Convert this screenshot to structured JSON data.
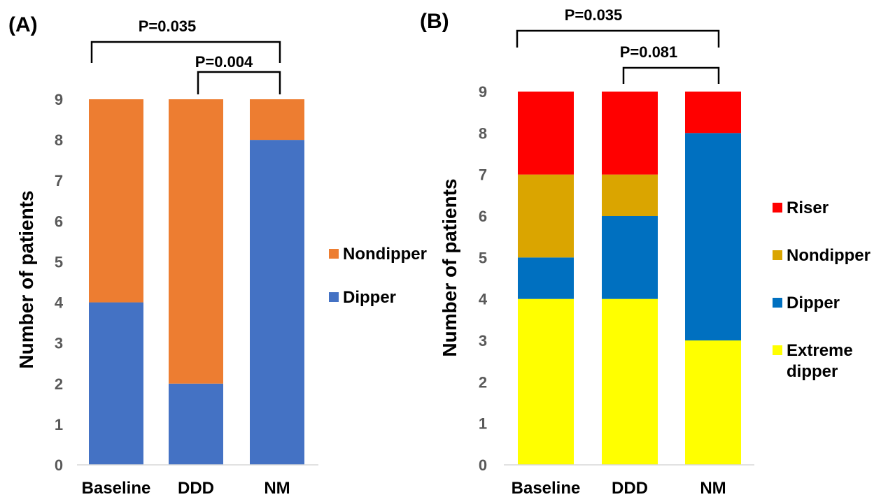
{
  "chart_data": [
    {
      "type": "bar",
      "stacked": true,
      "panel_label": "(A)",
      "title": "",
      "xlabel": "",
      "ylabel": "Number of patients",
      "ylim": [
        0,
        9
      ],
      "yticks": [
        0,
        1,
        2,
        3,
        4,
        5,
        6,
        7,
        8,
        9
      ],
      "grid": false,
      "legend_position": "right",
      "categories": [
        "Baseline",
        "DDD",
        "NM"
      ],
      "series": [
        {
          "name": "Dipper",
          "color": "#4472C4",
          "values": [
            4,
            2,
            8
          ]
        },
        {
          "name": "Nondipper",
          "color": "#ED7D31",
          "values": [
            5,
            7,
            1
          ]
        }
      ],
      "legend_order": [
        "Nondipper",
        "Dipper"
      ],
      "annotations": [
        {
          "text": "P=0.035",
          "from": "Baseline",
          "to": "NM"
        },
        {
          "text": "P=0.004",
          "from": "DDD",
          "to": "NM"
        }
      ]
    },
    {
      "type": "bar",
      "stacked": true,
      "panel_label": "(B)",
      "title": "",
      "xlabel": "",
      "ylabel": "Number of patients",
      "ylim": [
        0,
        9
      ],
      "yticks": [
        0,
        1,
        2,
        3,
        4,
        5,
        6,
        7,
        8,
        9
      ],
      "grid": false,
      "legend_position": "right",
      "categories": [
        "Baseline",
        "DDD",
        "NM"
      ],
      "series": [
        {
          "name": "Extreme dipper",
          "color": "#FFFF00",
          "values": [
            4,
            4,
            3
          ]
        },
        {
          "name": "Dipper",
          "color": "#0070C0",
          "values": [
            1,
            2,
            5
          ]
        },
        {
          "name": "Nondipper",
          "color": "#DAA500",
          "values": [
            2,
            1,
            0
          ]
        },
        {
          "name": "Riser",
          "color": "#FF0000",
          "values": [
            2,
            2,
            1
          ]
        }
      ],
      "legend_order": [
        "Riser",
        "Nondipper",
        "Dipper",
        "Extreme dipper"
      ],
      "annotations": [
        {
          "text": "P=0.035",
          "from": "Baseline",
          "to": "NM"
        },
        {
          "text": "P=0.081",
          "from": "DDD",
          "to": "NM"
        }
      ]
    }
  ]
}
